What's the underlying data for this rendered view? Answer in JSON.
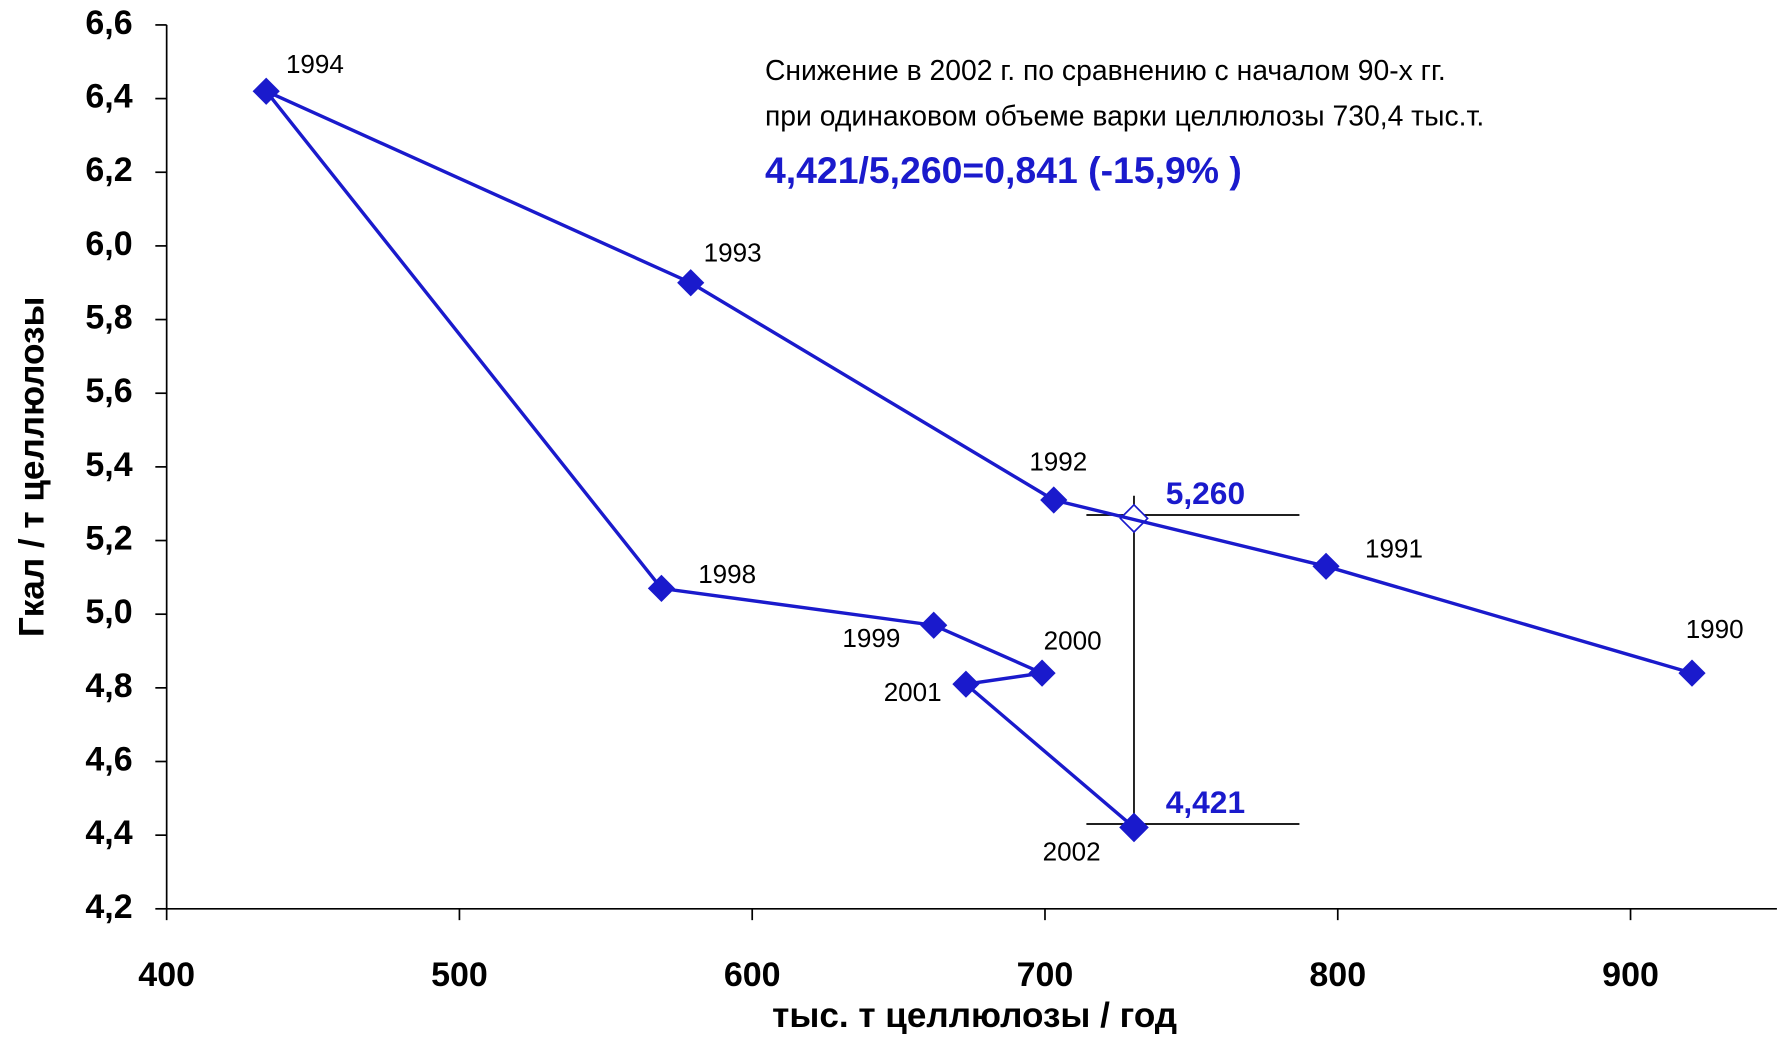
{
  "chart_data": {
    "type": "line",
    "xlabel": "тыс. т целлюлозы / год",
    "ylabel": "Гкал / т целлюлозы",
    "series": [
      {
        "color": "#1a1acc",
        "x": [
          921,
          796,
          703,
          579,
          434,
          569,
          662,
          699,
          673,
          730.4
        ],
        "values": [
          4.84,
          5.13,
          5.31,
          5.9,
          6.42,
          5.07,
          4.97,
          4.84,
          4.81,
          4.421
        ],
        "labels": [
          "1990",
          "1991",
          "1992",
          "1993",
          "1994",
          "1998",
          "1999",
          "2000",
          "2001",
          "2002"
        ]
      }
    ],
    "xlim": [
      400,
      950
    ],
    "xticks": [
      400,
      500,
      600,
      700,
      800,
      900
    ],
    "ylim": [
      4.2,
      6.6
    ],
    "yticks": [
      {
        "value": 4.2,
        "label": "4,2"
      },
      {
        "value": 4.4,
        "label": "4,4"
      },
      {
        "value": 4.6,
        "label": "4,6"
      },
      {
        "value": 4.8,
        "label": "4,8"
      },
      {
        "value": 5.0,
        "label": "5,0"
      },
      {
        "value": 5.2,
        "label": "5,2"
      },
      {
        "value": 5.4,
        "label": "5,4"
      },
      {
        "value": 5.6,
        "label": "5,6"
      },
      {
        "value": 5.8,
        "label": "5,8"
      },
      {
        "value": 6.0,
        "label": "6,0"
      },
      {
        "value": 6.2,
        "label": "6,2"
      },
      {
        "value": 6.4,
        "label": "6,4"
      },
      {
        "value": 6.6,
        "label": "6,6"
      }
    ],
    "grid": false,
    "annotations": {
      "text": [
        "Снижение в 2002 г. по сравнению с началом 90-х гг.",
        "при одинаковом объеме варки целлюлозы 730,4 тыс.т.",
        "4,421/5,260=0,841 (-15,9% )"
      ],
      "markers": [
        {
          "x": 730.4,
          "y": 5.26,
          "label": "5,260"
        },
        {
          "x": 730.4,
          "y": 4.421,
          "label": "4,421"
        }
      ]
    }
  }
}
